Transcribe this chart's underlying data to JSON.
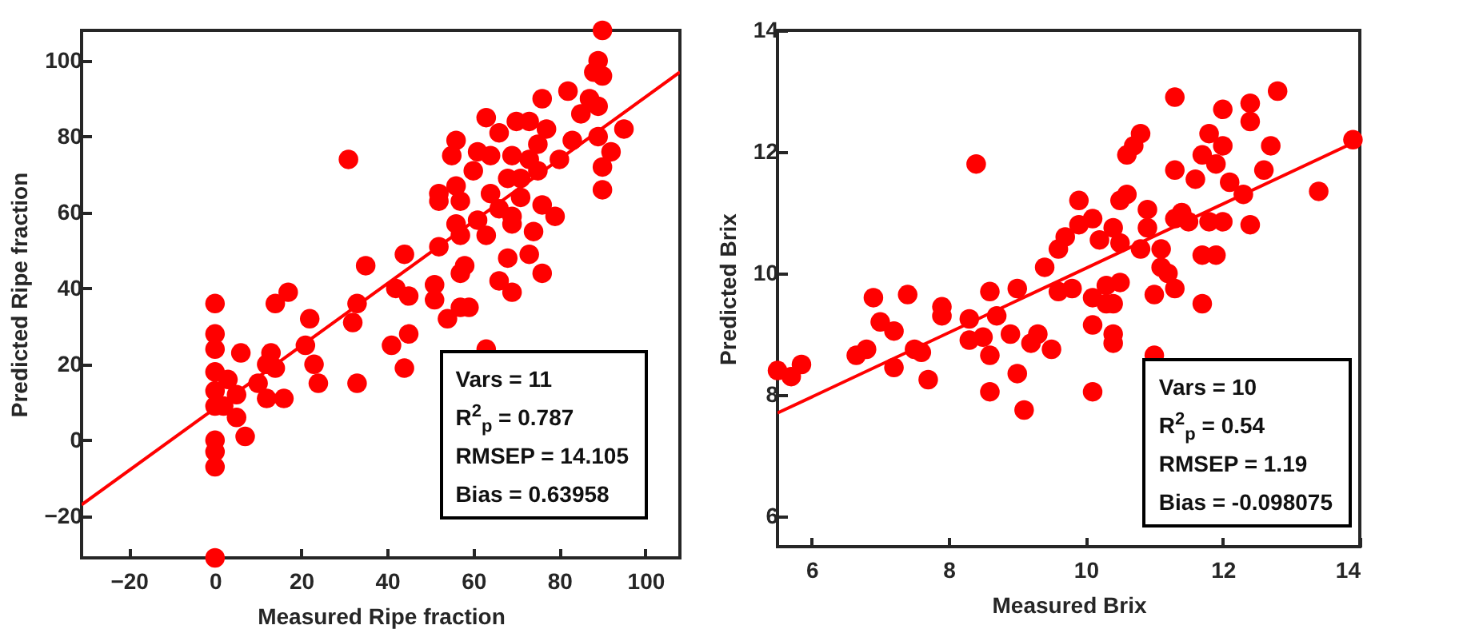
{
  "chart_data": [
    {
      "type": "scatter",
      "xlabel": "Measured Ripe fraction",
      "ylabel": "Predicted Ripe fraction",
      "xlim": [
        -31,
        108
      ],
      "ylim": [
        -31,
        108
      ],
      "xticks": [
        -20,
        0,
        20,
        40,
        60,
        80,
        100
      ],
      "yticks": [
        -20,
        0,
        20,
        40,
        60,
        80,
        100
      ],
      "series": [
        {
          "color": "#ff0000",
          "marker": "circle",
          "x": [
            90,
            89,
            88,
            90,
            76,
            82,
            87,
            89,
            85,
            63,
            70,
            73,
            77,
            95,
            66,
            56,
            83,
            89,
            75,
            55,
            61,
            64,
            69,
            73,
            80,
            92,
            31,
            90,
            60,
            75,
            68,
            71,
            56,
            52,
            52,
            57,
            64,
            71,
            76,
            90,
            79,
            66,
            69,
            61,
            56,
            63,
            69,
            74,
            57,
            52,
            44,
            73,
            68,
            35,
            58,
            57,
            76,
            51,
            66,
            42,
            69,
            45,
            17,
            14,
            0,
            33,
            51,
            57,
            54,
            59,
            22,
            32,
            0,
            45,
            41,
            21,
            63,
            0,
            6,
            13,
            12,
            23,
            44,
            14,
            0,
            3,
            24,
            33,
            10,
            0,
            5,
            12,
            16,
            0,
            2,
            5,
            7,
            0,
            0,
            0,
            0
          ],
          "values": [
            108,
            100,
            97,
            96,
            90,
            92,
            90,
            88,
            86,
            85,
            84,
            84,
            82,
            82,
            81,
            79,
            79,
            80,
            78,
            75,
            76,
            75,
            75,
            74,
            74,
            76,
            74,
            72,
            71,
            71,
            69,
            69,
            67,
            65,
            63,
            63,
            65,
            64,
            62,
            66,
            59,
            61,
            59,
            58,
            57,
            54,
            57,
            55,
            54,
            51,
            49,
            49,
            48,
            46,
            46,
            44,
            44,
            41,
            42,
            40,
            39,
            38,
            39,
            36,
            36,
            36,
            37,
            35,
            32,
            35,
            32,
            31,
            28,
            28,
            25,
            25,
            24,
            24,
            23,
            23,
            20,
            20,
            19,
            19,
            18,
            16,
            15,
            15,
            15,
            13,
            12,
            11,
            11,
            9,
            9,
            6,
            1,
            0,
            -3,
            -7,
            -31
          ]
        },
        {
          "type": "line",
          "color": "#ff0000",
          "x": [
            -31,
            108
          ],
          "values": [
            -17,
            97
          ]
        }
      ],
      "annotations": [
        "Vars = 11",
        "R$^{2}$$_{p}$ = 0.787",
        "RMSEP = 14.105",
        "Bias = 0.63958"
      ]
    },
    {
      "type": "scatter",
      "xlabel": "Measured Brix",
      "ylabel": "Predicted Brix",
      "xlim": [
        5.5,
        14
      ],
      "ylim": [
        5.5,
        14
      ],
      "xticks": [
        6,
        8,
        10,
        12,
        14
      ],
      "yticks": [
        6,
        8,
        10,
        12,
        14
      ],
      "series": [
        {
          "color": "#ff0000",
          "marker": "circle",
          "x": [
            11.3,
            12.8,
            12.4,
            12.0,
            12.4,
            10.8,
            10.7,
            11.8,
            12.0,
            12.7,
            13.9,
            10.6,
            11.7,
            11.9,
            8.4,
            11.3,
            12.6,
            11.6,
            12.1,
            12.3,
            13.4,
            10.6,
            10.5,
            9.9,
            10.9,
            11.4,
            11.3,
            11.5,
            10.1,
            9.9,
            11.8,
            12.0,
            12.4,
            10.4,
            10.9,
            9.7,
            10.2,
            10.5,
            10.8,
            11.1,
            9.6,
            11.7,
            11.9,
            9.4,
            11.1,
            11.2,
            6.9,
            7.4,
            8.6,
            9.0,
            9.6,
            9.8,
            10.3,
            10.5,
            11.0,
            11.3,
            11.7,
            7.9,
            10.1,
            10.3,
            10.4,
            7.0,
            7.2,
            7.9,
            8.3,
            8.7,
            8.3,
            8.5,
            8.9,
            9.3,
            9.5,
            9.2,
            10.1,
            10.4,
            10.4,
            6.8,
            6.65,
            7.5,
            7.6,
            5.5,
            5.7,
            5.85,
            7.2,
            7.7,
            8.6,
            9.0,
            11.0,
            8.6,
            10.1,
            9.1
          ],
          "values": [
            12.9,
            13.0,
            12.8,
            12.7,
            12.5,
            12.3,
            12.1,
            12.3,
            12.1,
            12.1,
            12.2,
            11.95,
            11.95,
            11.8,
            11.8,
            11.7,
            11.7,
            11.55,
            11.5,
            11.3,
            11.35,
            11.3,
            11.2,
            11.2,
            11.05,
            11.0,
            10.9,
            10.85,
            10.9,
            10.8,
            10.85,
            10.85,
            10.8,
            10.75,
            10.75,
            10.6,
            10.55,
            10.5,
            10.4,
            10.4,
            10.4,
            10.3,
            10.3,
            10.1,
            10.1,
            10.0,
            9.6,
            9.65,
            9.7,
            9.75,
            9.7,
            9.75,
            9.8,
            9.85,
            9.65,
            9.75,
            9.5,
            9.45,
            9.6,
            9.5,
            9.5,
            9.2,
            9.05,
            9.3,
            9.25,
            9.3,
            8.9,
            8.95,
            9.0,
            9.0,
            8.75,
            8.85,
            9.15,
            9.0,
            8.85,
            8.75,
            8.65,
            8.75,
            8.7,
            8.4,
            8.3,
            8.5,
            8.45,
            8.25,
            8.65,
            8.35,
            8.65,
            8.05,
            8.05,
            7.75
          ]
        },
        {
          "type": "line",
          "color": "#ff0000",
          "x": [
            5.5,
            14
          ],
          "values": [
            7.7,
            12.2
          ]
        }
      ],
      "annotations": [
        "Vars = 10",
        "R$^{2}$$_{p}$ = 0.54",
        "RMSEP = 1.19",
        "Bias = -0.098075"
      ]
    }
  ]
}
